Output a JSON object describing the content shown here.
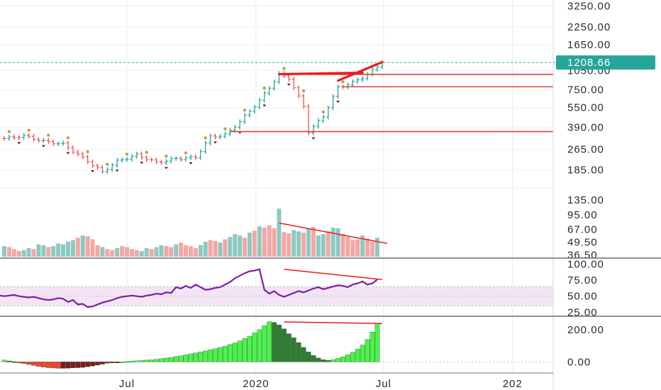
{
  "chart_data": [
    {
      "type": "candlestick",
      "title": "",
      "scale": "log",
      "price_axis_ticks": [
        "3250.00",
        "2250.00",
        "1650.00",
        "1050.00",
        "750.00",
        "550.00",
        "390.00",
        "265.00",
        "185.00"
      ],
      "last_price": "1208.66",
      "ylim": [
        140,
        3600
      ],
      "price_path": [
        {
          "date": "2019-01-07",
          "close": 320
        },
        {
          "date": "2019-02-04",
          "close": 335
        },
        {
          "date": "2019-03-04",
          "close": 305
        },
        {
          "date": "2019-04-01",
          "close": 290
        },
        {
          "date": "2019-05-06",
          "close": 215
        },
        {
          "date": "2019-05-27",
          "close": 178
        },
        {
          "date": "2019-06-17",
          "close": 215
        },
        {
          "date": "2019-07-15",
          "close": 240
        },
        {
          "date": "2019-08-12",
          "close": 210
        },
        {
          "date": "2019-09-09",
          "close": 225
        },
        {
          "date": "2019-10-07",
          "close": 230
        },
        {
          "date": "2019-10-28",
          "close": 330
        },
        {
          "date": "2019-11-18",
          "close": 340
        },
        {
          "date": "2019-12-09",
          "close": 430
        },
        {
          "date": "2020-01-06",
          "close": 620
        },
        {
          "date": "2020-02-03",
          "close": 980
        },
        {
          "date": "2020-02-17",
          "close": 920
        },
        {
          "date": "2020-03-09",
          "close": 560
        },
        {
          "date": "2020-03-16",
          "close": 360
        },
        {
          "date": "2020-04-06",
          "close": 470
        },
        {
          "date": "2020-04-27",
          "close": 780
        },
        {
          "date": "2020-05-18",
          "close": 850
        },
        {
          "date": "2020-06-08",
          "close": 980
        },
        {
          "date": "2020-06-29",
          "close": 1208.66
        }
      ],
      "levels": [
        980,
        790,
        361
      ],
      "trendlines": [
        {
          "from": [
            "2020-02-03",
            985
          ],
          "to": [
            "2020-06-01",
            1010
          ]
        },
        {
          "from": [
            "2020-04-27",
            880
          ],
          "to": [
            "2020-06-29",
            1215
          ]
        }
      ]
    },
    {
      "type": "bar",
      "name": "volume",
      "axis_ticks": [
        "135.00",
        "95.00",
        "67.00",
        "49.50",
        "36.50"
      ],
      "ylim": [
        35,
        160
      ],
      "start_date": "2019-01-07",
      "values": [
        45,
        44,
        42,
        40,
        41,
        43,
        42,
        47,
        46,
        44,
        45,
        48,
        47,
        50,
        52,
        55,
        58,
        57,
        53,
        46,
        44,
        42,
        41,
        43,
        45,
        44,
        42,
        41,
        40,
        43,
        42,
        44,
        46,
        45,
        44,
        47,
        49,
        46,
        45,
        43,
        46,
        50,
        52,
        51,
        49,
        53,
        56,
        60,
        58,
        55,
        62,
        65,
        72,
        70,
        74,
        69,
        110,
        63,
        61,
        66,
        64,
        62,
        68,
        71,
        58,
        60,
        64,
        70,
        69,
        60,
        56,
        52,
        53,
        58,
        54,
        50,
        55
      ]
    },
    {
      "type": "line",
      "name": "RSI",
      "axis_ticks": [
        "100.00",
        "75.00",
        "50.00",
        "25.00"
      ],
      "ylim": [
        22,
        105
      ],
      "band": [
        35,
        65
      ],
      "start_date": "2019-01-07",
      "values": [
        50,
        51,
        52,
        50,
        49,
        48,
        49,
        47,
        45,
        44,
        45,
        47,
        46,
        41,
        44,
        37,
        38,
        33,
        34,
        37,
        40,
        42,
        44,
        47,
        49,
        50,
        51,
        50,
        49,
        51,
        52,
        54,
        53,
        56,
        55,
        64,
        62,
        66,
        63,
        68,
        64,
        60,
        61,
        63,
        64,
        68,
        72,
        78,
        82,
        86,
        89,
        90,
        92,
        60,
        54,
        58,
        52,
        49,
        52,
        55,
        58,
        56,
        59,
        62,
        64,
        61,
        63,
        65,
        67,
        66,
        64,
        68,
        70,
        73,
        68,
        70,
        76
      ]
    },
    {
      "type": "bar",
      "name": "MACD histogram",
      "axis_ticks": [
        "200.00",
        "0.00"
      ],
      "ylim": [
        -60,
        270
      ],
      "start_date": "2019-01-07",
      "values": [
        12,
        6,
        2,
        -4,
        -10,
        -16,
        -22,
        -28,
        -32,
        -36,
        -38,
        -40,
        -40,
        -39,
        -37,
        -36,
        -34,
        -30,
        -26,
        -20,
        -14,
        -8,
        -4,
        -2,
        1,
        3,
        5,
        7,
        9,
        11,
        13,
        16,
        20,
        24,
        28,
        33,
        38,
        44,
        50,
        56,
        62,
        68,
        75,
        82,
        90,
        98,
        108,
        118,
        130,
        145,
        160,
        180,
        200,
        225,
        250,
        245,
        230,
        205,
        175,
        150,
        120,
        90,
        62,
        40,
        24,
        14,
        10,
        14,
        22,
        32,
        45,
        60,
        80,
        105,
        140,
        185,
        240
      ]
    }
  ],
  "time_axis": {
    "labels": [
      {
        "date": "2019-07-01",
        "text": "Jul"
      },
      {
        "date": "2020-01-01",
        "text": "2020"
      },
      {
        "date": "2020-07-01",
        "text": "Jul"
      },
      {
        "date": "2021-01-01",
        "text": "202"
      }
    ]
  },
  "colors": {
    "up": "#26a69a",
    "down": "#ef5350",
    "volume_up": "#8ec9c2",
    "volume_down": "#f4a7a3",
    "level_line": "#e53935",
    "trendline": "#ee1b1b",
    "rsi_line": "#7b1fa2",
    "rsi_band": "#f3e5f5",
    "macd_rising": "#4cf24c",
    "macd_falling": "#2e7d32",
    "macd_neg": "#f44336",
    "macd_neg_rising": "#7b1e1e",
    "price_badge": "#26a69a",
    "fractal_up": "#b5a642",
    "fractal_down": "#7a0a0a"
  }
}
